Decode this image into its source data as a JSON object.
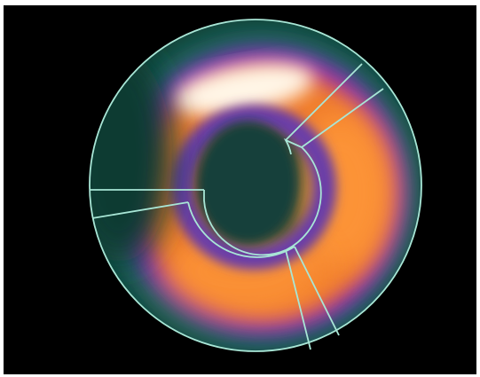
{
  "image": {
    "subject": "bullseye-polar-map",
    "colors": {
      "background": "#000000",
      "frame": "#ffffff",
      "outline": "#a8e6d6",
      "outer_tissue": "#0f3a32",
      "teal": "#1e6e62",
      "purple": "#6a3ea8",
      "magenta": "#b2379a",
      "orange": "#ef7a2a",
      "hot_orange": "#ff9a3a",
      "highlight": "#fff5e6",
      "center": "#153f3a"
    }
  }
}
